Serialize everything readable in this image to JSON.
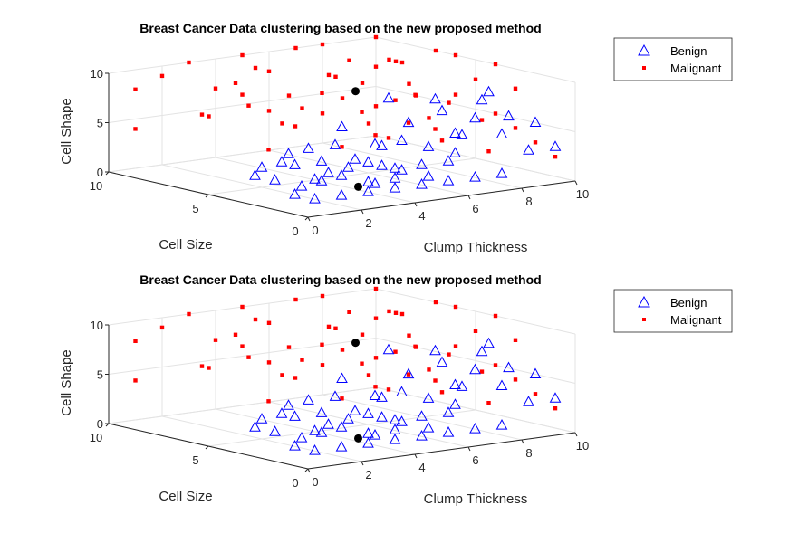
{
  "chart_data": [
    {
      "type": "scatter3d",
      "title": "Breast Cancer Data clustering based on the new proposed method",
      "xlabel": "Clump Thickness",
      "ylabel": "Cell Size",
      "zlabel": "Cell Shape",
      "xlim": [
        0,
        10
      ],
      "ylim": [
        0,
        10
      ],
      "zlim": [
        0,
        10
      ],
      "xticks": [
        "0",
        "2",
        "4",
        "6",
        "8",
        "10"
      ],
      "yticks": [
        "0",
        "5",
        "10"
      ],
      "zticks": [
        "0",
        "5",
        "10"
      ],
      "grid": true,
      "legend_position": "top-right",
      "series": [
        {
          "name": "Benign",
          "marker": "triangle",
          "color": "#0000ff",
          "points": "benign"
        },
        {
          "name": "Malignant",
          "marker": "square",
          "color": "#ff0000",
          "points": "malignant"
        }
      ],
      "centroids_color": "#000000"
    },
    {
      "type": "scatter3d",
      "title": "Breast Cancer Data clustering based on the new proposed method",
      "xlabel": "Clump Thickness",
      "ylabel": "Cell Size",
      "zlabel": "Cell Shape",
      "xlim": [
        0,
        10
      ],
      "ylim": [
        0,
        10
      ],
      "zlim": [
        0,
        10
      ],
      "xticks": [
        "0",
        "2",
        "4",
        "6",
        "8",
        "10"
      ],
      "yticks": [
        "0",
        "5",
        "10"
      ],
      "zticks": [
        "0",
        "5",
        "10"
      ],
      "grid": true,
      "legend_position": "top-right",
      "series": [
        {
          "name": "Benign",
          "marker": "triangle",
          "color": "#0000ff",
          "points": "benign"
        },
        {
          "name": "Malignant",
          "marker": "square",
          "color": "#ff0000",
          "points": "malignant"
        }
      ],
      "centroids_color": "#000000"
    }
  ],
  "points": {
    "malignant": [
      [
        5,
        10,
        10
      ],
      [
        7,
        10,
        10
      ],
      [
        10,
        10,
        10
      ],
      [
        8,
        10,
        10
      ],
      [
        6,
        10,
        8
      ],
      [
        4,
        8,
        10
      ],
      [
        10,
        7,
        10
      ],
      [
        9,
        8,
        9
      ],
      [
        10,
        10,
        7
      ],
      [
        8,
        6,
        10
      ],
      [
        10,
        5,
        8
      ],
      [
        7,
        8,
        8
      ],
      [
        6,
        7,
        9
      ],
      [
        5,
        6,
        8
      ],
      [
        10,
        6,
        6
      ],
      [
        9,
        10,
        8
      ],
      [
        8,
        9,
        5
      ],
      [
        10,
        4,
        5
      ],
      [
        10,
        8,
        5
      ],
      [
        7,
        5,
        7
      ],
      [
        6,
        9,
        6
      ],
      [
        5,
        10,
        6
      ],
      [
        3,
        10,
        10
      ],
      [
        4,
        10,
        7
      ],
      [
        2,
        10,
        9
      ],
      [
        1,
        10,
        8
      ],
      [
        1,
        10,
        4
      ],
      [
        3,
        9,
        5
      ],
      [
        5,
        8,
        4
      ],
      [
        6,
        5,
        5
      ],
      [
        10,
        3,
        4
      ],
      [
        10,
        2,
        3
      ],
      [
        9,
        3,
        2
      ],
      [
        8,
        4,
        3
      ],
      [
        7,
        3,
        5
      ],
      [
        6,
        4,
        4
      ],
      [
        5,
        5,
        3
      ],
      [
        4,
        6,
        5
      ],
      [
        10,
        10,
        3
      ],
      [
        10,
        1,
        2
      ],
      [
        10,
        4,
        10
      ],
      [
        9,
        6,
        4
      ],
      [
        8,
        8,
        7
      ],
      [
        7,
        6,
        3
      ],
      [
        6,
        10,
        4
      ],
      [
        5,
        7,
        6
      ],
      [
        4,
        9,
        8
      ],
      [
        3,
        7,
        7
      ],
      [
        8,
        10,
        3
      ],
      [
        9,
        5,
        6
      ],
      [
        10,
        9,
        8
      ],
      [
        6,
        3,
        6
      ],
      [
        7,
        4,
        8
      ],
      [
        8,
        2,
        6
      ],
      [
        10,
        6,
        10
      ],
      [
        5,
        4,
        7
      ],
      [
        9,
        7,
        7
      ],
      [
        2,
        8,
        6
      ],
      [
        3,
        6,
        3
      ],
      [
        10,
        3,
        8
      ]
    ],
    "benign": [
      [
        1,
        1,
        1
      ],
      [
        2,
        1,
        1
      ],
      [
        3,
        1,
        1
      ],
      [
        4,
        1,
        1
      ],
      [
        5,
        1,
        1
      ],
      [
        6,
        1,
        1
      ],
      [
        1,
        2,
        1
      ],
      [
        2,
        2,
        2
      ],
      [
        3,
        1,
        2
      ],
      [
        4,
        2,
        1
      ],
      [
        5,
        2,
        2
      ],
      [
        6,
        2,
        1
      ],
      [
        7,
        1,
        1
      ],
      [
        8,
        1,
        1
      ],
      [
        3,
        3,
        2
      ],
      [
        4,
        3,
        3
      ],
      [
        5,
        3,
        2
      ],
      [
        2,
        3,
        1
      ],
      [
        1,
        3,
        2
      ],
      [
        1,
        1,
        3
      ],
      [
        2,
        1,
        3
      ],
      [
        3,
        2,
        3
      ],
      [
        4,
        1,
        3
      ],
      [
        5,
        1,
        3
      ],
      [
        6,
        1,
        3
      ],
      [
        7,
        2,
        3
      ],
      [
        8,
        3,
        4
      ],
      [
        8,
        1,
        5
      ],
      [
        7,
        1,
        7
      ],
      [
        9,
        1,
        3
      ],
      [
        10,
        1,
        3
      ],
      [
        10,
        2,
        5
      ],
      [
        6,
        3,
        6
      ],
      [
        5,
        2,
        5
      ],
      [
        4,
        4,
        4
      ],
      [
        3,
        4,
        4
      ],
      [
        2,
        4,
        3
      ],
      [
        1,
        4,
        2
      ],
      [
        5,
        5,
        5
      ],
      [
        6,
        4,
        8
      ],
      [
        7,
        3,
        8
      ],
      [
        8,
        2,
        8
      ],
      [
        9,
        3,
        8
      ],
      [
        4,
        1,
        2
      ],
      [
        3,
        1,
        4
      ],
      [
        2,
        2,
        4
      ],
      [
        6,
        2,
        4
      ],
      [
        7,
        2,
        5
      ],
      [
        5,
        3,
        4
      ],
      [
        4,
        2,
        5
      ],
      [
        1,
        2,
        4
      ],
      [
        2,
        5,
        2
      ],
      [
        3,
        5,
        3
      ],
      [
        8,
        4,
        6
      ],
      [
        9,
        2,
        6
      ]
    ],
    "centroids": [
      [
        7,
        7,
        7
      ],
      [
        3,
        1.5,
        1.3
      ]
    ]
  }
}
